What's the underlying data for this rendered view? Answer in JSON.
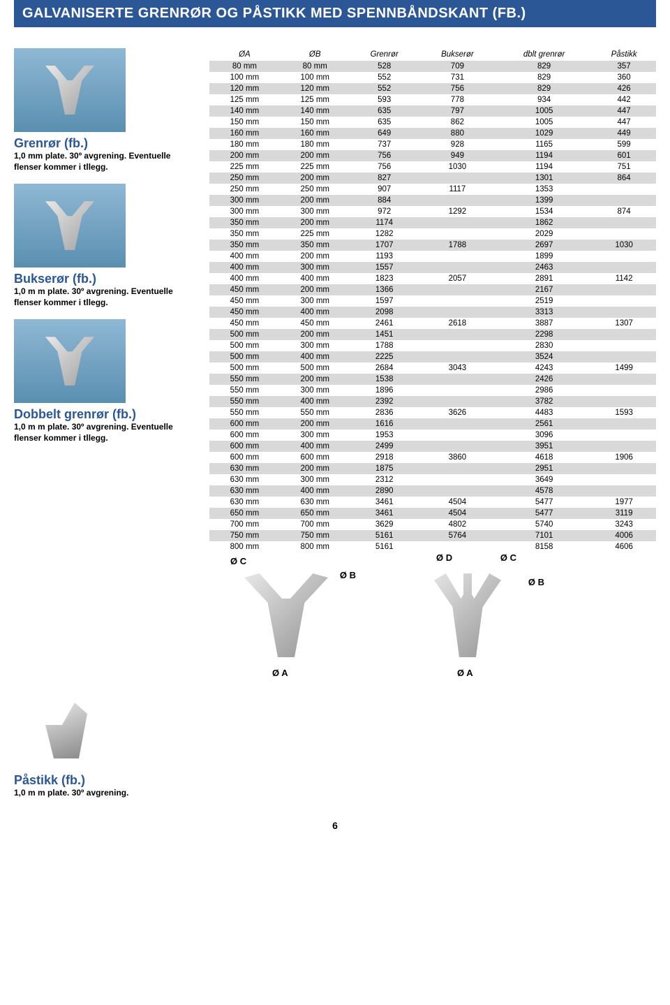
{
  "header": "GALVANISERTE GRENRØR OG PÅSTIKK MED SPENNBÅNDSKANT (FB.)",
  "products": [
    {
      "title": "Grenrør (fb.)",
      "desc": "1,0 mm plate. 30º avgrening. Eventuelle flenser kommer i tllegg."
    },
    {
      "title": "Bukserør (fb.)",
      "desc": "1,0 m m plate. 30º avgrening. Eventuelle flenser kommer i tllegg."
    },
    {
      "title": "Dobbelt grenrør (fb.)",
      "desc": "1,0 m m plate. 30º avgrening. Eventuelle flenser kommer i tllegg."
    }
  ],
  "pastikk": {
    "title": "Påstikk (fb.)",
    "desc": "1,0 m m plate. 30º avgrening."
  },
  "table": {
    "columns": [
      "ØA",
      "ØB",
      "Grenrør",
      "Bukserør",
      "dblt grenrør",
      "Påstikk"
    ],
    "rows": [
      [
        "80 mm",
        "80 mm",
        "528",
        "709",
        "829",
        "357"
      ],
      [
        "100 mm",
        "100 mm",
        "552",
        "731",
        "829",
        "360"
      ],
      [
        "120 mm",
        "120 mm",
        "552",
        "756",
        "829",
        "426"
      ],
      [
        "125 mm",
        "125 mm",
        "593",
        "778",
        "934",
        "442"
      ],
      [
        "140 mm",
        "140 mm",
        "635",
        "797",
        "1005",
        "447"
      ],
      [
        "150 mm",
        "150 mm",
        "635",
        "862",
        "1005",
        "447"
      ],
      [
        "160 mm",
        "160 mm",
        "649",
        "880",
        "1029",
        "449"
      ],
      [
        "180 mm",
        "180 mm",
        "737",
        "928",
        "1165",
        "599"
      ],
      [
        "200 mm",
        "200 mm",
        "756",
        "949",
        "1194",
        "601"
      ],
      [
        "225 mm",
        "225 mm",
        "756",
        "1030",
        "1194",
        "751"
      ],
      [
        "250 mm",
        "200 mm",
        "827",
        "",
        "1301",
        "864"
      ],
      [
        "250 mm",
        "250 mm",
        "907",
        "1117",
        "1353",
        ""
      ],
      [
        "300 mm",
        "200 mm",
        "884",
        "",
        "1399",
        ""
      ],
      [
        "300 mm",
        "300 mm",
        "972",
        "1292",
        "1534",
        "874"
      ],
      [
        "350 mm",
        "200 mm",
        "1174",
        "",
        "1862",
        ""
      ],
      [
        "350 mm",
        "225 mm",
        "1282",
        "",
        "2029",
        ""
      ],
      [
        "350 mm",
        "350 mm",
        "1707",
        "1788",
        "2697",
        "1030"
      ],
      [
        "400 mm",
        "200 mm",
        "1193",
        "",
        "1899",
        ""
      ],
      [
        "400 mm",
        "300 mm",
        "1557",
        "",
        "2463",
        ""
      ],
      [
        "400 mm",
        "400 mm",
        "1823",
        "2057",
        "2891",
        "1142"
      ],
      [
        "450 mm",
        "200 mm",
        "1366",
        "",
        "2167",
        ""
      ],
      [
        "450 mm",
        "300 mm",
        "1597",
        "",
        "2519",
        ""
      ],
      [
        "450 mm",
        "400 mm",
        "2098",
        "",
        "3313",
        ""
      ],
      [
        "450 mm",
        "450 mm",
        "2461",
        "2618",
        "3887",
        "1307"
      ],
      [
        "500 mm",
        "200 mm",
        "1451",
        "",
        "2298",
        ""
      ],
      [
        "500 mm",
        "300 mm",
        "1788",
        "",
        "2830",
        ""
      ],
      [
        "500 mm",
        "400 mm",
        "2225",
        "",
        "3524",
        ""
      ],
      [
        "500 mm",
        "500 mm",
        "2684",
        "3043",
        "4243",
        "1499"
      ],
      [
        "550 mm",
        "200 mm",
        "1538",
        "",
        "2426",
        ""
      ],
      [
        "550 mm",
        "300 mm",
        "1896",
        "",
        "2986",
        ""
      ],
      [
        "550 mm",
        "400 mm",
        "2392",
        "",
        "3782",
        ""
      ],
      [
        "550 mm",
        "550 mm",
        "2836",
        "3626",
        "4483",
        "1593"
      ],
      [
        "600 mm",
        "200 mm",
        "1616",
        "",
        "2561",
        ""
      ],
      [
        "600 mm",
        "300 mm",
        "1953",
        "",
        "3096",
        ""
      ],
      [
        "600 mm",
        "400 mm",
        "2499",
        "",
        "3951",
        ""
      ],
      [
        "600 mm",
        "600 mm",
        "2918",
        "3860",
        "4618",
        "1906"
      ],
      [
        "630 mm",
        "200 mm",
        "1875",
        "",
        "2951",
        ""
      ],
      [
        "630 mm",
        "300 mm",
        "2312",
        "",
        "3649",
        ""
      ],
      [
        "630 mm",
        "400 mm",
        "2890",
        "",
        "4578",
        ""
      ],
      [
        "630 mm",
        "630 mm",
        "3461",
        "4504",
        "5477",
        "1977"
      ],
      [
        "650 mm",
        "650 mm",
        "3461",
        "4504",
        "5477",
        "3119"
      ],
      [
        "700 mm",
        "700 mm",
        "3629",
        "4802",
        "5740",
        "3243"
      ],
      [
        "750 mm",
        "750 mm",
        "5161",
        "5764",
        "7101",
        "4006"
      ],
      [
        "800 mm",
        "800 mm",
        "5161",
        "",
        "8158",
        "4606"
      ]
    ]
  },
  "diagram_labels": {
    "oa": "Ø A",
    "ob": "Ø B",
    "oc": "Ø C",
    "od": "Ø D"
  },
  "page_num": "6"
}
